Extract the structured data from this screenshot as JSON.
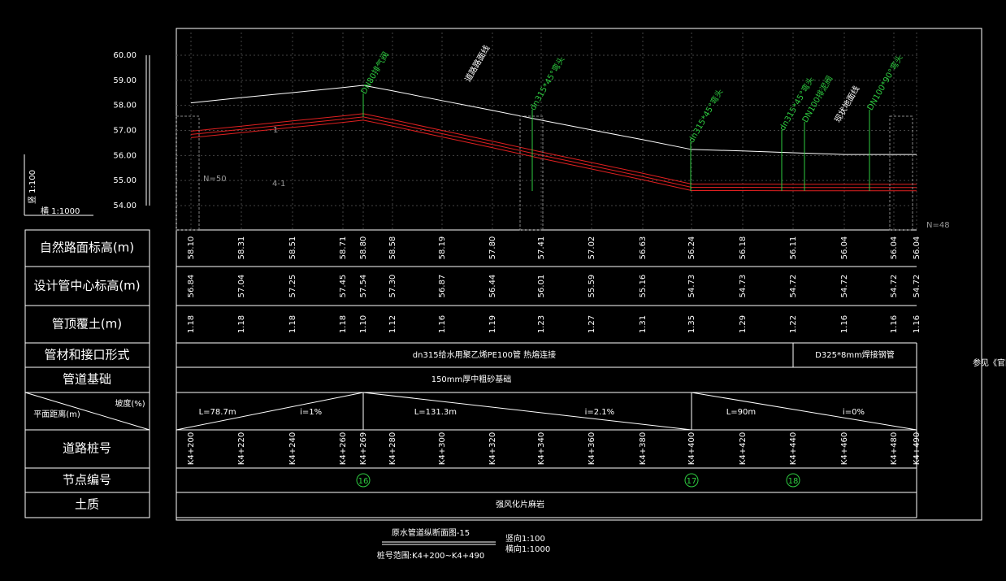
{
  "scale_note": {
    "vertical": "竖 1:100",
    "horizontal": "横 1:1000"
  },
  "elevation_axis": {
    "ticks": [
      {
        "value": 60,
        "label": "60.00"
      },
      {
        "value": 59,
        "label": "59.00"
      },
      {
        "value": 58,
        "label": "58.00"
      },
      {
        "value": 57,
        "label": "57.00"
      },
      {
        "value": 56,
        "label": "56.00"
      },
      {
        "value": 55,
        "label": "55.00"
      },
      {
        "value": 54,
        "label": "54.00"
      }
    ]
  },
  "row_headers": {
    "natural": "自然路面标高(m)",
    "design": "设计管中心标高(m)",
    "cover": "管顶覆土(m)",
    "material": "管材和接口形式",
    "base": "管道基础",
    "slope": "坡度(%)",
    "distance": "平面距离(m)",
    "station": "道路桩号",
    "node": "节点编号",
    "soil": "土质"
  },
  "stations": [
    "K4+200",
    "K4+220",
    "K4+240",
    "K4+260",
    "K4+269",
    "K4+280",
    "K4+300",
    "K4+320",
    "K4+340",
    "K4+360",
    "K4+380",
    "K4+400",
    "K4+420",
    "K4+440",
    "K4+460",
    "K4+480",
    "K4+490"
  ],
  "natural_elevation": [
    "58.10",
    "58.31",
    "58.51",
    "58.71",
    "58.80",
    "58.58",
    "58.19",
    "57.80",
    "57.41",
    "57.02",
    "56.63",
    "56.24",
    "56.18",
    "56.11",
    "56.04",
    "56.04",
    "56.04"
  ],
  "design_elevation": [
    "56.84",
    "57.04",
    "57.25",
    "57.45",
    "57.54",
    "57.30",
    "56.87",
    "56.44",
    "56.01",
    "55.59",
    "55.16",
    "54.73",
    "54.73",
    "54.72",
    "54.72",
    "54.72",
    "54.72"
  ],
  "cover_depth": [
    "1.18",
    "1.18",
    "1.18",
    "1.18",
    "1.10",
    "1.12",
    "1.16",
    "1.19",
    "1.23",
    "1.27",
    "1.31",
    "1.35",
    "1.29",
    "1.22",
    "1.16",
    "1.16",
    "1.16"
  ],
  "pipe_material": [
    "dn315给水用聚乙烯PE100管 热熔连接",
    "D325*8mm焊接钢管"
  ],
  "pipe_base": "150mm厚中粗砂基础",
  "slope_segments": [
    {
      "length": "L=78.7m",
      "slope": "i=1%"
    },
    {
      "length": "L=131.3m",
      "slope": "i=2.1%"
    },
    {
      "length": "L=90m",
      "slope": "i=0%"
    }
  ],
  "nodes": [
    "16",
    "17",
    "18"
  ],
  "soil": "强风化片麻岩",
  "annotations": [
    "DN80排气阀",
    "道路路面线",
    "dn315*45°弯头",
    "dn315*45°弯头",
    "dn315*45°弯头",
    "DN100排泥阀",
    "现状地面线",
    "DN100*90°弯头"
  ],
  "profile_labels": [
    "N=50",
    "N=48",
    "4-1",
    "1"
  ],
  "title": {
    "name": "原水管道纵断面图-15",
    "range": "桩号范围:K4+200~K4+490",
    "vertical_scale": "竖向1:100",
    "horizontal_scale": "横向1:1000"
  },
  "side_note": "参见《官网"
}
